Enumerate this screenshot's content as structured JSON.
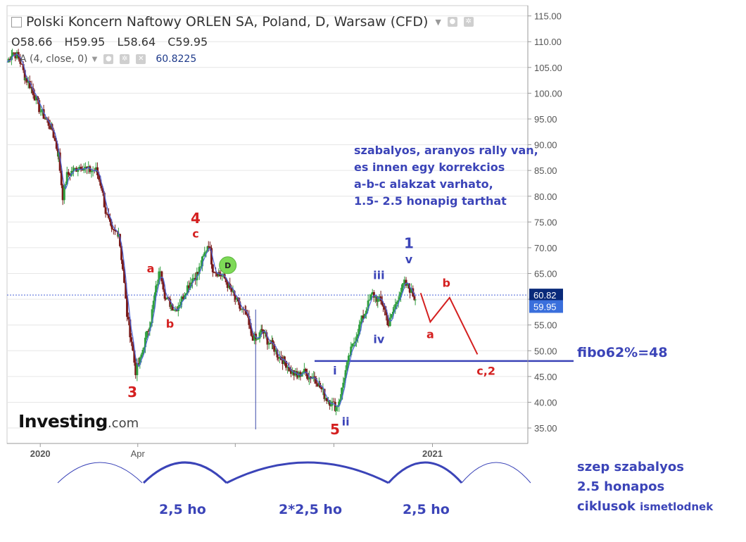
{
  "header": {
    "title": "Polski Koncern Naftowy ORLEN SA, Poland, D, Warsaw (CFD)",
    "ohlc": {
      "open": "O58.66",
      "high": "H59.95",
      "low": "L58.64",
      "close": "C59.95"
    },
    "indicator_label": "A (4, close, 0)",
    "indicator_value": "60.8225"
  },
  "logo": {
    "brand": "Investing",
    "suffix": ".com"
  },
  "price_tags": {
    "ma": "60.82",
    "close": "59.95"
  },
  "annotations": {
    "rally_note": [
      "szabalyos, aranyos rally van,",
      "es innen egy korrekcios",
      "a-b-c alakzat varhato,",
      "1.5- 2.5 honapig tarthat"
    ],
    "fibo": "fibo62%=48",
    "cycle_note": [
      "szep szabalyos",
      "2.5 honapos",
      "ciklusok"
    ],
    "cycle_note_small": "ismetlodnek",
    "durations": [
      "2,5 ho",
      "2*2,5 ho",
      "2,5 ho"
    ]
  },
  "colors": {
    "up": "#2e9e3e",
    "down": "#7a1a1a",
    "ma": "#4a63d8",
    "red": "#d42020",
    "blue": "#3b44b8",
    "grid": "#e6e6e6",
    "axis_text": "#555555",
    "dividend": "#7ed957"
  },
  "icons": {
    "settings": "gear-icon",
    "visibility": "eye-icon",
    "close": "close-icon",
    "dropdown": "chevron-down-icon"
  },
  "chart_data": {
    "type": "candlestick",
    "yaxis": {
      "ticks": [
        "115.00",
        "110.00",
        "105.00",
        "100.00",
        "95.00",
        "90.00",
        "85.00",
        "80.00",
        "75.00",
        "70.00",
        "65.00",
        "60.00",
        "55.00",
        "50.00",
        "45.00",
        "40.00",
        "35.00"
      ],
      "ylim": [
        32,
        117
      ]
    },
    "xaxis": {
      "ticks": [
        "2020",
        "Apr",
        "2021"
      ],
      "start": "2019-12-01",
      "end": "2021-03-31"
    },
    "closes": [
      [
        "2019-12-01",
        106
      ],
      [
        "2019-12-06",
        108
      ],
      [
        "2019-12-12",
        107
      ],
      [
        "2019-12-18",
        103
      ],
      [
        "2019-12-24",
        101
      ],
      [
        "2019-12-31",
        97
      ],
      [
        "2020-01-06",
        95
      ],
      [
        "2020-01-12",
        93
      ],
      [
        "2020-01-18",
        88
      ],
      [
        "2020-01-22",
        80
      ],
      [
        "2020-01-26",
        84
      ],
      [
        "2020-02-01",
        85
      ],
      [
        "2020-02-08",
        86
      ],
      [
        "2020-02-15",
        85
      ],
      [
        "2020-02-22",
        85
      ],
      [
        "2020-02-27",
        82
      ],
      [
        "2020-03-02",
        77
      ],
      [
        "2020-03-08",
        73
      ],
      [
        "2020-03-14",
        73
      ],
      [
        "2020-03-18",
        66
      ],
      [
        "2020-03-22",
        57
      ],
      [
        "2020-03-26",
        52
      ],
      [
        "2020-03-30",
        46
      ],
      [
        "2020-04-03",
        48
      ],
      [
        "2020-04-08",
        52
      ],
      [
        "2020-04-13",
        56
      ],
      [
        "2020-04-18",
        62
      ],
      [
        "2020-04-22",
        66
      ],
      [
        "2020-04-27",
        60
      ],
      [
        "2020-05-02",
        59
      ],
      [
        "2020-05-06",
        58
      ],
      [
        "2020-05-12",
        60
      ],
      [
        "2020-05-16",
        62
      ],
      [
        "2020-05-22",
        64
      ],
      [
        "2020-05-27",
        65
      ],
      [
        "2020-06-01",
        68
      ],
      [
        "2020-06-06",
        71
      ],
      [
        "2020-06-10",
        66
      ],
      [
        "2020-06-16",
        65
      ],
      [
        "2020-06-21",
        64
      ],
      [
        "2020-06-26",
        62
      ],
      [
        "2020-07-01",
        60
      ],
      [
        "2020-07-06",
        58
      ],
      [
        "2020-07-11",
        57
      ],
      [
        "2020-07-16",
        53
      ],
      [
        "2020-07-21",
        52
      ],
      [
        "2020-07-26",
        54
      ],
      [
        "2020-07-31",
        52
      ],
      [
        "2020-08-05",
        51
      ],
      [
        "2020-08-10",
        49
      ],
      [
        "2020-08-16",
        48
      ],
      [
        "2020-08-22",
        46
      ],
      [
        "2020-08-28",
        45
      ],
      [
        "2020-09-02",
        46
      ],
      [
        "2020-09-08",
        45
      ],
      [
        "2020-09-13",
        45
      ],
      [
        "2020-09-18",
        43
      ],
      [
        "2020-09-23",
        41
      ],
      [
        "2020-09-28",
        40
      ],
      [
        "2020-10-03",
        39
      ],
      [
        "2020-10-07",
        41
      ],
      [
        "2020-10-12",
        46
      ],
      [
        "2020-10-17",
        50
      ],
      [
        "2020-10-22",
        53
      ],
      [
        "2020-10-27",
        56
      ],
      [
        "2020-11-02",
        59
      ],
      [
        "2020-11-06",
        61
      ],
      [
        "2020-11-11",
        60
      ],
      [
        "2020-11-16",
        59
      ],
      [
        "2020-11-21",
        55
      ],
      [
        "2020-11-26",
        58
      ],
      [
        "2020-12-01",
        61
      ],
      [
        "2020-12-06",
        63
      ],
      [
        "2020-12-11",
        62
      ],
      [
        "2020-12-16",
        59.95
      ]
    ],
    "current_price_line": 60.82,
    "dividend_marker": {
      "date": "2020-06-24",
      "label": "D"
    },
    "fibo_level": 48,
    "wave_labels": [
      {
        "text": "3",
        "date": "2020-03-27",
        "price": 41.0,
        "color": "red"
      },
      {
        "text": "a",
        "date": "2020-04-13",
        "price": 65.2,
        "color": "red"
      },
      {
        "text": "b",
        "date": "2020-05-01",
        "price": 54.5,
        "color": "red"
      },
      {
        "text": "4",
        "date": "2020-05-25",
        "price": 74.8,
        "color": "red"
      },
      {
        "text": "c",
        "date": "2020-05-25",
        "price": 72.0,
        "color": "red"
      },
      {
        "text": "5",
        "date": "2020-10-02",
        "price": 33.8,
        "color": "red"
      },
      {
        "text": "i",
        "date": "2020-10-02",
        "price": 45.4,
        "color": "blue"
      },
      {
        "text": "ii",
        "date": "2020-10-12",
        "price": 35.5,
        "color": "blue"
      },
      {
        "text": "iii",
        "date": "2020-11-12",
        "price": 63.9,
        "color": "blue"
      },
      {
        "text": "iv",
        "date": "2020-11-12",
        "price": 51.5,
        "color": "blue"
      },
      {
        "text": "1",
        "date": "2020-12-10",
        "price": 69.9,
        "color": "blue"
      },
      {
        "text": "v",
        "date": "2020-12-10",
        "price": 67.0,
        "color": "blue"
      },
      {
        "text": "a",
        "date": "2020-12-30",
        "price": 52.4,
        "color": "red"
      },
      {
        "text": "b",
        "date": "2021-01-14",
        "price": 62.4,
        "color": "red"
      },
      {
        "text": "c,2",
        "date": "2021-02-20",
        "price": 45.3,
        "color": "red"
      }
    ],
    "projection_path": [
      [
        "2020-12-21",
        61.2
      ],
      [
        "2020-12-30",
        55.6
      ],
      [
        "2021-01-17",
        60.3
      ],
      [
        "2021-02-12",
        49.3
      ]
    ]
  }
}
